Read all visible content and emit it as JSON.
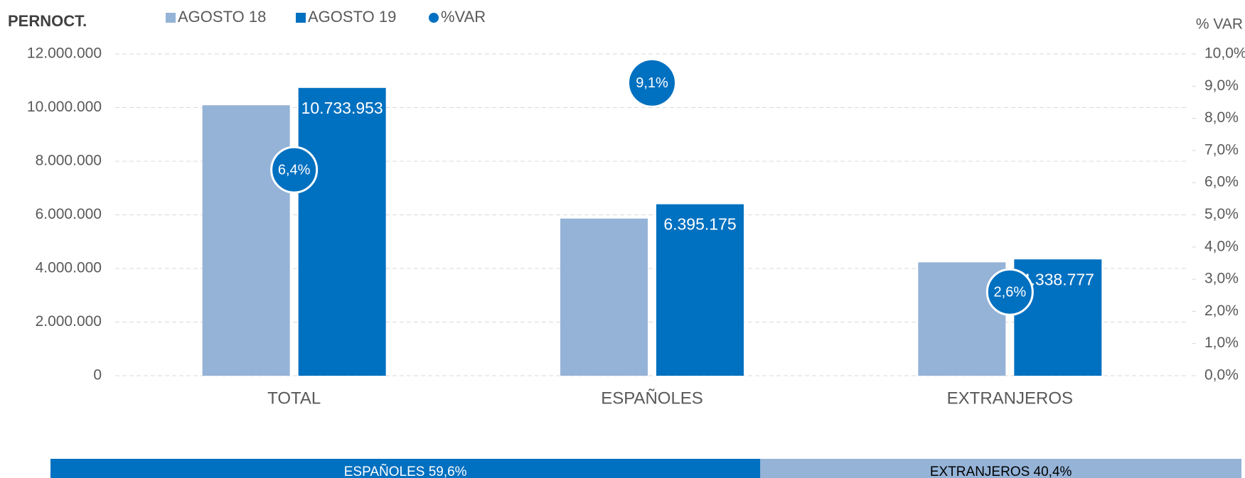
{
  "chart_data": {
    "type": "bar",
    "title": "PERNOCT.",
    "y2_title": "% VAR",
    "categories": [
      "TOTAL",
      "ESPAÑOLES",
      "EXTRANJEROS"
    ],
    "series": [
      {
        "name": "AGOSTO 18",
        "color": "#95b3d7",
        "values": [
          10088302,
          5861755,
          4228827
        ]
      },
      {
        "name": "AGOSTO 19",
        "color": "#0070c0",
        "values": [
          10733953,
          6395175,
          4338777
        ],
        "value_labels": [
          "10.733.953",
          "6.395.175",
          "4.338.777"
        ]
      },
      {
        "name": "%VAR",
        "color": "#0070c0",
        "axis": "y2",
        "values": [
          6.4,
          9.1,
          2.6
        ],
        "value_labels": [
          "6,4%",
          "9,1%",
          "2,6%"
        ]
      }
    ],
    "ylim": [
      0,
      12000000
    ],
    "yticks": [
      {
        "value": 0,
        "label": "0"
      },
      {
        "value": 2000000,
        "label": "2.000.000"
      },
      {
        "value": 4000000,
        "label": "4.000.000"
      },
      {
        "value": 6000000,
        "label": "6.000.000"
      },
      {
        "value": 8000000,
        "label": "8.000.000"
      },
      {
        "value": 10000000,
        "label": "10.000.000"
      },
      {
        "value": 12000000,
        "label": "12.000.000"
      }
    ],
    "y2lim": [
      0,
      10
    ],
    "y2ticks": [
      {
        "value": 0,
        "label": "0,0%"
      },
      {
        "value": 1,
        "label": "1,0%"
      },
      {
        "value": 2,
        "label": "2,0%"
      },
      {
        "value": 3,
        "label": "3,0%"
      },
      {
        "value": 4,
        "label": "4,0%"
      },
      {
        "value": 5,
        "label": "5,0%"
      },
      {
        "value": 6,
        "label": "6,0%"
      },
      {
        "value": 7,
        "label": "7,0%"
      },
      {
        "value": 8,
        "label": "8,0%"
      },
      {
        "value": 9,
        "label": "9,0%"
      },
      {
        "value": 10,
        "label": "10,0%"
      }
    ],
    "grid": true,
    "legend": "top",
    "share": {
      "labels": [
        "ESPAÑOLES 59,6%",
        "EXTRANJEROS 40,4%"
      ],
      "values": [
        59.6,
        40.4
      ],
      "colors": [
        "#0070c0",
        "#95b3d7"
      ]
    }
  }
}
